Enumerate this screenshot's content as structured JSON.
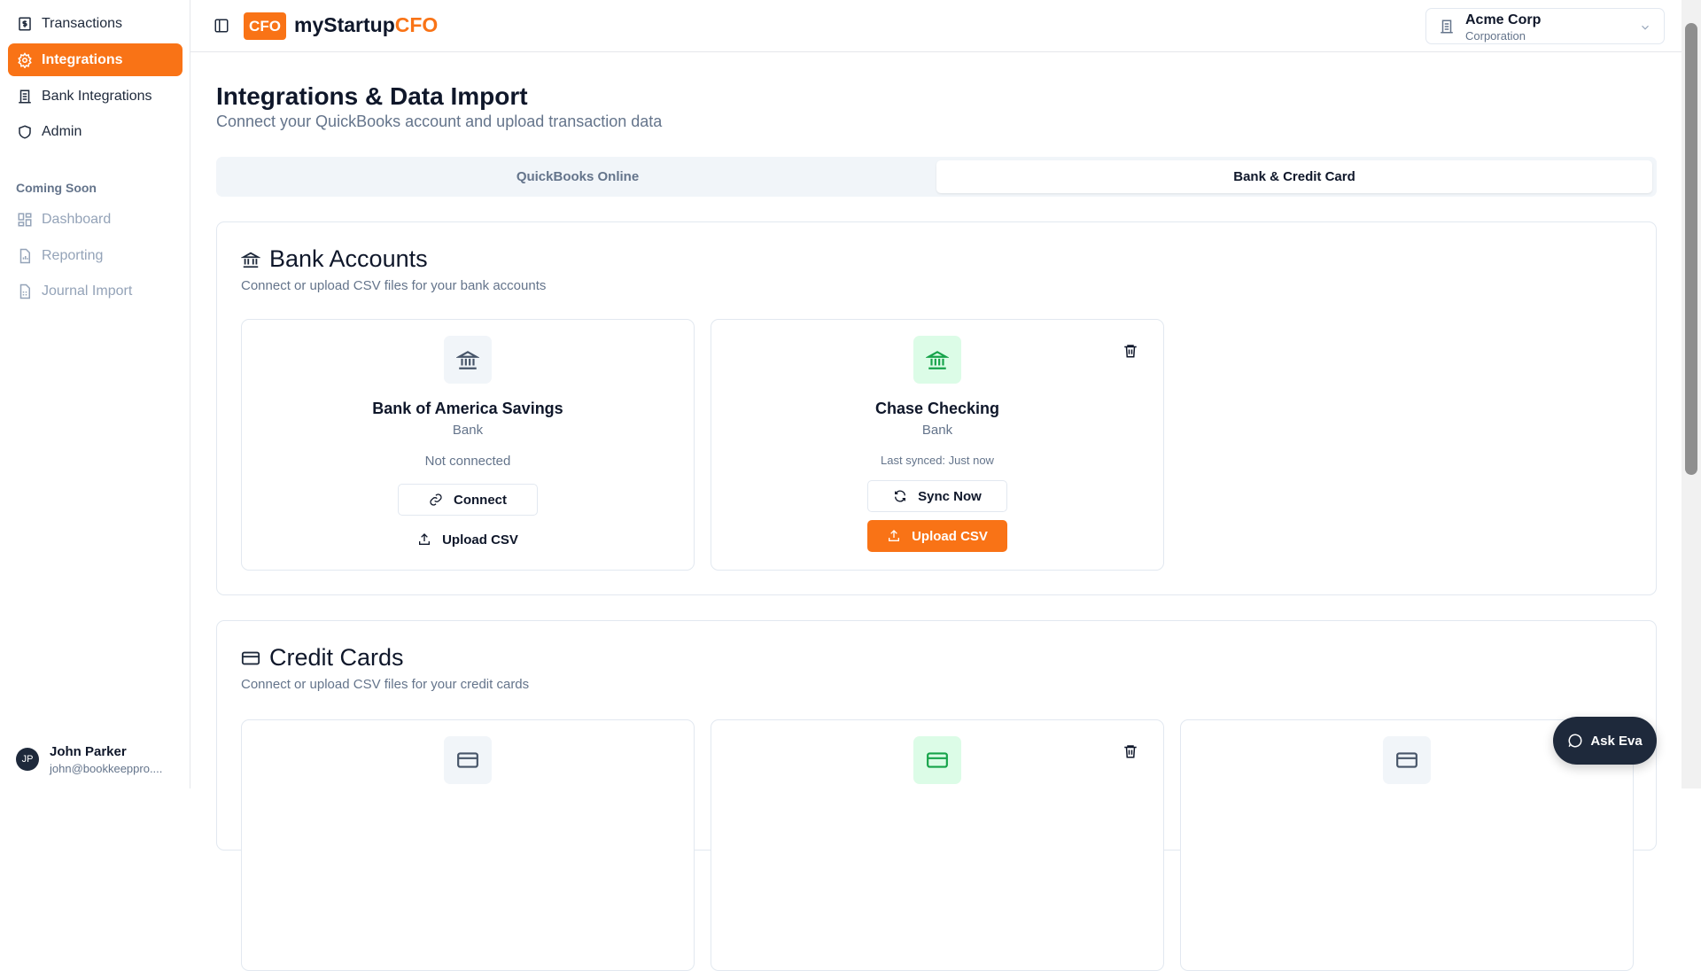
{
  "sidebar": {
    "items": [
      {
        "label": "Transactions",
        "icon": "dollar-receipt-icon"
      },
      {
        "label": "Integrations",
        "icon": "gear-icon",
        "active": true
      },
      {
        "label": "Bank Integrations",
        "icon": "building-icon"
      },
      {
        "label": "Admin",
        "icon": "shield-icon"
      }
    ],
    "section_label": "Coming Soon",
    "soon_items": [
      {
        "label": "Dashboard",
        "icon": "grid-icon"
      },
      {
        "label": "Reporting",
        "icon": "chart-file-icon"
      },
      {
        "label": "Journal Import",
        "icon": "table-file-icon"
      }
    ],
    "user": {
      "initials": "JP",
      "name": "John Parker",
      "email": "john@bookkeeppro...."
    }
  },
  "header": {
    "logo_badge": "CFO",
    "logo_main": "myStartup",
    "logo_accent": "CFO",
    "company": {
      "name": "Acme Corp",
      "type": "Corporation"
    }
  },
  "main": {
    "title": "Integrations & Data Import",
    "subtitle": "Connect your QuickBooks account and upload transaction data",
    "tabs": [
      {
        "label": "QuickBooks Online"
      },
      {
        "label": "Bank & Credit Card",
        "active": true
      }
    ],
    "bank": {
      "title": "Bank Accounts",
      "description": "Connect or upload CSV files for your bank accounts",
      "accounts": [
        {
          "name": "Bank of America Savings",
          "type": "Bank",
          "status": "Not connected",
          "primary": "Connect",
          "secondary": "Upload CSV"
        },
        {
          "name": "Chase Checking",
          "type": "Bank",
          "status": "Last synced: Just now",
          "primary": "Sync Now",
          "secondary": "Upload CSV"
        }
      ]
    },
    "credit": {
      "title": "Credit Cards",
      "description": "Connect or upload CSV files for your credit cards"
    }
  },
  "ask_eva": "Ask Eva",
  "colors": {
    "accent": "#f97316",
    "connected_bg": "#dcfce7",
    "connected_icon": "#16a34a",
    "dark": "#1e293b"
  }
}
